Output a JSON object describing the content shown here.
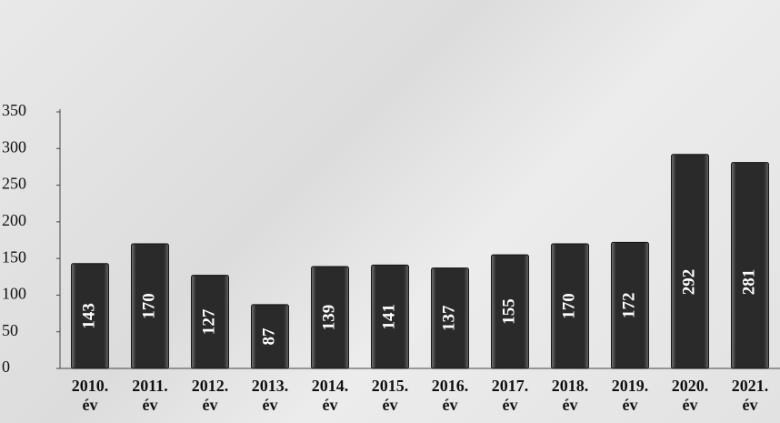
{
  "chart_data": {
    "type": "bar",
    "categories": [
      "2010. év",
      "2011. év",
      "2012. év",
      "2013. év",
      "2014. év",
      "2015. év",
      "2016. év",
      "2017. év",
      "2018. év",
      "2019. év",
      "2020. év",
      "2021. év"
    ],
    "values": [
      143,
      170,
      127,
      87,
      139,
      141,
      137,
      155,
      170,
      172,
      292,
      281
    ],
    "color": "#2e2e2e",
    "ylim": [
      0,
      350
    ],
    "yticks": [
      0,
      50,
      100,
      150,
      200,
      250,
      300,
      350
    ]
  }
}
